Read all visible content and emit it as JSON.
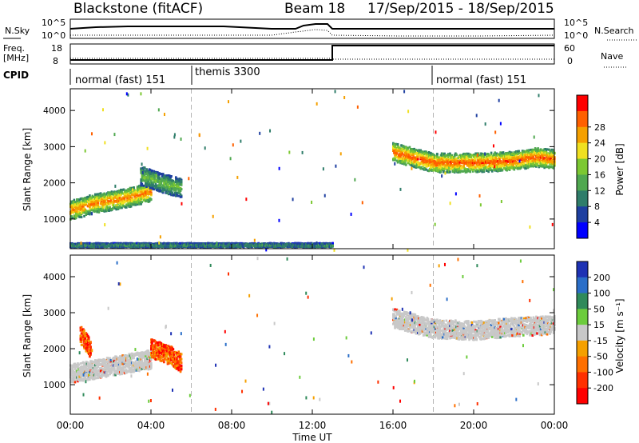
{
  "header": {
    "station": "Blackstone (fitACF)",
    "beam": "Beam 18",
    "date_range": "17/Sep/2015 - 18/Sep/2015"
  },
  "noise_panel": {
    "left_label": "N.Sky",
    "right_label": "N.Search",
    "ticks_left": [
      "10^5",
      "10^0"
    ],
    "ticks_right": [
      "10^5",
      "10^0"
    ]
  },
  "freq_panel": {
    "left_label_line1": "Freq.",
    "left_label_line2": "[MHz]",
    "right_label": "Nave",
    "ticks_left": [
      "18",
      "8"
    ],
    "ticks_right": [
      "60",
      "0"
    ]
  },
  "cpid": {
    "label": "CPID",
    "segments": [
      {
        "text": "normal (fast) 151",
        "start_hour": 0
      },
      {
        "text": "themis 3300",
        "start_hour": 6
      },
      {
        "text": "normal (fast) 151",
        "start_hour": 18
      }
    ]
  },
  "chart_data": [
    {
      "type": "heatmap",
      "title": "",
      "quantity": "Power",
      "x_unit_label": "Time UT",
      "xlim": [
        0,
        24
      ],
      "ylabel": "Slant Range [km]",
      "ylim": [
        180,
        4600
      ],
      "yticks": [
        1000,
        2000,
        3000,
        4000
      ],
      "colorbar": {
        "label": "Power [dB]",
        "ticks": [
          "4",
          "8",
          "12",
          "16",
          "20",
          "24",
          "28"
        ],
        "range": [
          0,
          30
        ],
        "colors": [
          "#0000ff",
          "#1e3fa0",
          "#2f7d6a",
          "#50a850",
          "#7cc832",
          "#f0e020",
          "#f5a000",
          "#ff6000",
          "#ff0000"
        ]
      },
      "features": [
        {
          "name": "Band 00-04 UT",
          "x": [
            0,
            0.5,
            1,
            2,
            3,
            4
          ],
          "y": [
            1250,
            1300,
            1400,
            1500,
            1600,
            1750
          ],
          "peak_db": 26
        },
        {
          "name": "Scatter 03.5-05.5 UT",
          "x": [
            3.5,
            4.5,
            5.5
          ],
          "y": [
            2200,
            2000,
            1850
          ],
          "peak_db": 14
        },
        {
          "name": "Band 16-24 UT",
          "x": [
            16,
            17,
            18,
            20,
            22,
            23,
            24
          ],
          "y": [
            2850,
            2700,
            2550,
            2550,
            2600,
            2700,
            2650
          ],
          "peak_db": 28
        },
        {
          "name": "Ground scatter 00-13 UT",
          "x": [
            0,
            13
          ],
          "y": [
            270,
            270
          ],
          "peak_db": 10
        }
      ]
    },
    {
      "type": "heatmap",
      "title": "",
      "quantity": "Velocity",
      "x_unit_label": "Time UT",
      "xlim": [
        0,
        24
      ],
      "ylabel": "Slant Range [km]",
      "ylim": [
        180,
        4600
      ],
      "yticks": [
        1000,
        2000,
        3000,
        4000
      ],
      "colorbar": {
        "label": "Velocity [m s⁻¹]",
        "ticks": [
          "200",
          "100",
          "50",
          "15",
          "-15",
          "-50",
          "-100",
          "-200"
        ],
        "colors": [
          "#1e32b4",
          "#2a6ec8",
          "#2f8a5a",
          "#6ccc3c",
          "#c8c8c8",
          "#f5a000",
          "#ff7000",
          "#ff3000",
          "#ff0000"
        ]
      },
      "features": [
        {
          "name": "Ground scatter 00-04 UT",
          "x": [
            0,
            1,
            2,
            3,
            4
          ],
          "y": [
            1300,
            1400,
            1500,
            1600,
            1700
          ],
          "velocity": 0
        },
        {
          "name": "Negative flow 00-01 UT",
          "x": [
            0.5,
            1
          ],
          "y": [
            2400,
            2000
          ],
          "velocity": -150
        },
        {
          "name": "Mixed 04-05.5 UT",
          "x": [
            4,
            5,
            5.5
          ],
          "y": [
            2000,
            1800,
            1600
          ],
          "velocity": -50
        },
        {
          "name": "Ground scatter 16-24 UT",
          "x": [
            16,
            18,
            20,
            22,
            24
          ],
          "y": [
            2850,
            2550,
            2500,
            2600,
            2650
          ],
          "velocity": 0
        }
      ]
    }
  ],
  "time_axis": {
    "ticks": [
      "00:00",
      "04:00",
      "08:00",
      "12:00",
      "16:00",
      "20:00",
      "00:00"
    ],
    "label": "Time UT"
  },
  "colors": {
    "dashed_marker": "#b4b4b4",
    "frame": "#000000"
  }
}
